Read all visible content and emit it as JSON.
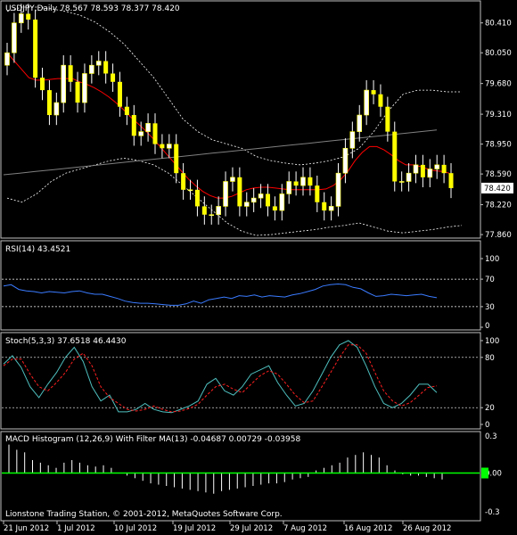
{
  "window": {
    "symbol_title": "USDJPY,Daily  78.567 78.593 78.377 78.420",
    "footer": "Lionstone Trading Station, © 2001-2012, MetaQuotes Software Corp."
  },
  "chart_data": [
    {
      "type": "candlestick",
      "title": "USDJPY,Daily  78.567 78.593 78.377 78.420",
      "ylim": [
        77.85,
        80.6
      ],
      "yticks": [
        "80.410",
        "80.050",
        "79.680",
        "79.310",
        "78.950",
        "78.590",
        "78.220",
        "77.860"
      ],
      "current_price": "78.420",
      "x_labels": [
        "21 Jun 2012",
        "1 Jul 2012",
        "10 Jul 2012",
        "19 Jul 2012",
        "29 Jul 2012",
        "7 Aug 2012",
        "16 Aug 2012",
        "26 Aug 2012"
      ],
      "candles_close": [
        80.05,
        80.41,
        80.52,
        80.45,
        79.75,
        79.6,
        79.3,
        79.45,
        79.9,
        79.7,
        79.45,
        79.8,
        79.9,
        79.95,
        79.8,
        79.7,
        79.4,
        79.3,
        79.05,
        79.1,
        79.2,
        78.95,
        78.9,
        78.95,
        78.6,
        78.4,
        78.4,
        78.2,
        78.1,
        78.1,
        78.2,
        78.5,
        78.55,
        78.2,
        78.25,
        78.3,
        78.35,
        78.2,
        78.15,
        78.35,
        78.5,
        78.45,
        78.55,
        78.45,
        78.25,
        78.15,
        78.2,
        78.6,
        78.9,
        79.1,
        79.3,
        79.6,
        79.55,
        79.4,
        79.1,
        78.5,
        78.5,
        78.6,
        78.7,
        78.55,
        78.65,
        78.7,
        78.6,
        78.42
      ],
      "series": [
        {
          "name": "",
          "color": "#ffff00",
          "kind": "candles"
        },
        {
          "name": "",
          "color": "#ff0000",
          "kind": "ma"
        },
        {
          "name": "",
          "color": "#808080",
          "kind": "ma"
        },
        {
          "name": "",
          "color": "#ffffff",
          "kind": "bollinger"
        }
      ],
      "ma_fast": [
        80.05,
        79.95,
        79.85,
        79.75,
        79.72,
        79.72,
        79.73,
        79.74,
        79.74,
        79.74,
        79.7,
        79.67,
        79.63,
        79.58,
        79.52,
        79.45,
        79.37,
        79.28,
        79.2,
        79.12,
        79.03,
        78.93,
        78.83,
        78.73,
        78.63,
        78.53,
        78.45,
        78.38,
        78.33,
        78.3,
        78.3,
        78.32,
        78.36,
        78.4,
        78.42,
        78.43,
        78.43,
        78.42,
        78.41,
        78.4,
        78.4,
        78.4,
        78.4,
        78.4,
        78.41,
        78.45,
        78.52,
        78.62,
        78.75,
        78.85,
        78.92,
        78.92,
        78.88,
        78.82,
        78.75,
        78.7,
        78.7,
        78.68,
        78.65,
        78.63,
        78.62,
        78.6
      ],
      "ma_slow": [
        78.58,
        78.6,
        78.62,
        78.64,
        78.66,
        78.68,
        78.7,
        78.72,
        78.74,
        78.76,
        78.78,
        78.8,
        78.82,
        78.84,
        78.86,
        78.88,
        78.9,
        78.92,
        78.94,
        78.96,
        78.98,
        79.0,
        79.02,
        79.04,
        79.06,
        79.08,
        79.1,
        79.12
      ],
      "bb_upper": [
        80.55,
        80.6,
        80.6,
        80.58,
        80.55,
        80.5,
        80.42,
        80.3,
        80.15,
        79.95,
        79.75,
        79.5,
        79.25,
        79.1,
        79.0,
        78.95,
        78.9,
        78.8,
        78.75,
        78.72,
        78.7,
        78.72,
        78.75,
        78.8,
        78.9,
        79.1,
        79.35,
        79.55,
        79.6,
        79.6,
        79.58,
        79.58
      ],
      "bb_lower": [
        78.3,
        78.25,
        78.35,
        78.5,
        78.6,
        78.65,
        78.7,
        78.75,
        78.78,
        78.75,
        78.7,
        78.6,
        78.45,
        78.3,
        78.15,
        78.0,
        77.9,
        77.85,
        77.86,
        77.88,
        77.9,
        77.92,
        77.95,
        77.97,
        78.0,
        77.95,
        77.9,
        77.88,
        77.9,
        77.92,
        77.95,
        77.97
      ]
    },
    {
      "type": "line",
      "title": "RSI(14) 43.4521",
      "ylim": [
        0,
        100
      ],
      "yticks": [
        "100",
        "70",
        "30",
        "0"
      ],
      "levels": [
        70,
        30
      ],
      "series": [
        {
          "name": "",
          "color": "#3a7bff",
          "values": [
            60,
            62,
            55,
            53,
            52,
            50,
            52,
            51,
            50,
            52,
            53,
            50,
            48,
            48,
            45,
            42,
            38,
            36,
            35,
            35,
            34,
            33,
            32,
            32,
            34,
            38,
            35,
            40,
            42,
            44,
            42,
            46,
            45,
            47,
            44,
            46,
            45,
            44,
            47,
            49,
            52,
            55,
            60,
            62,
            63,
            62,
            58,
            56,
            50,
            45,
            46,
            48,
            47,
            46,
            47,
            48,
            45,
            43
          ]
        }
      ]
    },
    {
      "type": "line",
      "title": "Stoch(5,3,3) 37.6518 46.4430",
      "ylim": [
        0,
        100
      ],
      "yticks": [
        "100",
        "80",
        "20",
        "0"
      ],
      "levels": [
        80,
        20
      ],
      "series": [
        {
          "name": "",
          "color": "#4fbfbf",
          "values": [
            72,
            82,
            68,
            45,
            32,
            48,
            62,
            80,
            92,
            75,
            45,
            28,
            35,
            15,
            15,
            18,
            25,
            18,
            15,
            14,
            18,
            22,
            28,
            48,
            55,
            40,
            35,
            45,
            60,
            65,
            70,
            50,
            35,
            22,
            25,
            40,
            60,
            80,
            95,
            100,
            92,
            70,
            45,
            25,
            20,
            25,
            35,
            48,
            48,
            38
          ]
        },
        {
          "name": "",
          "color": "#ff2020",
          "values": [
            70,
            78,
            78,
            60,
            45,
            40,
            50,
            62,
            78,
            85,
            70,
            45,
            32,
            25,
            18,
            16,
            18,
            22,
            18,
            15,
            16,
            19,
            24,
            35,
            45,
            48,
            42,
            38,
            48,
            58,
            64,
            60,
            48,
            35,
            26,
            28,
            45,
            62,
            80,
            95,
            95,
            85,
            62,
            40,
            28,
            22,
            26,
            35,
            44,
            46
          ]
        }
      ]
    },
    {
      "type": "bar",
      "title": "MACD Histogram (12,26,9) With Filter MA(13) -0.04687 0.00729 -0.03958",
      "ylim": [
        -0.3,
        0.3
      ],
      "yticks": [
        "0.3",
        "0.00",
        "-0.3"
      ],
      "zero_color": "#00ff00",
      "bar_color": "#ffffff",
      "values": [
        0.22,
        0.18,
        0.16,
        0.1,
        0.08,
        0.06,
        0.04,
        0.08,
        0.1,
        0.08,
        0.06,
        0.05,
        0.06,
        0.04,
        0.0,
        -0.02,
        -0.04,
        -0.06,
        -0.08,
        -0.09,
        -0.1,
        -0.11,
        -0.12,
        -0.13,
        -0.14,
        -0.15,
        -0.16,
        -0.14,
        -0.13,
        -0.12,
        -0.11,
        -0.1,
        -0.09,
        -0.08,
        -0.08,
        -0.07,
        -0.05,
        -0.04,
        -0.03,
        0.02,
        0.04,
        0.06,
        0.08,
        0.12,
        0.14,
        0.16,
        0.14,
        0.12,
        0.06,
        0.02,
        -0.01,
        -0.02,
        -0.02,
        -0.03,
        -0.04,
        -0.05
      ]
    }
  ]
}
